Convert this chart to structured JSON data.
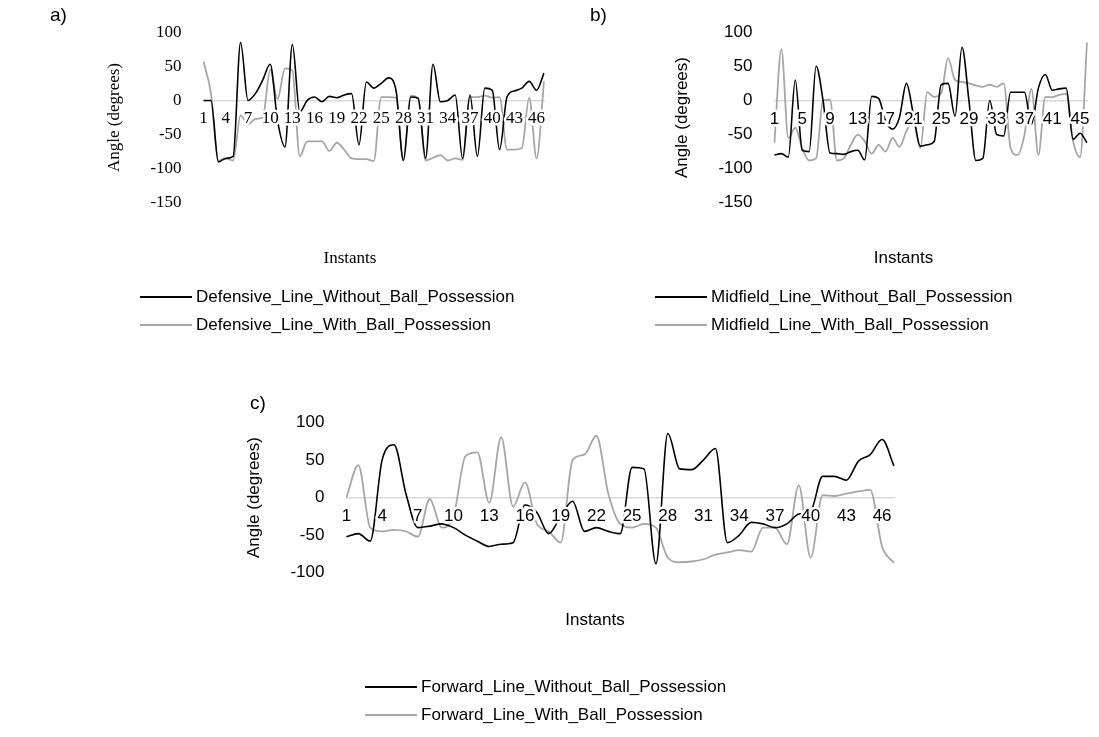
{
  "chart_data": [
    {
      "type": "line",
      "title": "a)",
      "xlabel": "Instants",
      "ylabel": "Angle (degrees)",
      "ylim": [
        -150,
        100
      ],
      "yticks": [
        -150,
        -100,
        -50,
        0,
        50,
        100
      ],
      "grid": false,
      "legend": "bottom",
      "marker": "none",
      "line_style": "solid",
      "categories": [
        "1",
        null,
        null,
        "4",
        null,
        null,
        "7",
        null,
        null,
        "10",
        null,
        null,
        "13",
        null,
        null,
        "16",
        null,
        null,
        "19",
        null,
        null,
        "22",
        null,
        null,
        "25",
        null,
        null,
        "28",
        null,
        null,
        "31",
        null,
        null,
        "34",
        null,
        null,
        "37",
        null,
        null,
        "40",
        null,
        null,
        "43",
        null,
        null,
        "46",
        null
      ],
      "series": [
        {
          "name": "Defensive_Line_Without_Ball_Possession",
          "color": "#000000",
          "values": [
            0,
            0,
            -90,
            -85,
            -82,
            85,
            0,
            10,
            30,
            53,
            -30,
            -68,
            82,
            -17,
            0,
            5,
            -2,
            6,
            4,
            8,
            10,
            -65,
            27,
            18,
            25,
            33,
            15,
            -88,
            5,
            3,
            -85,
            53,
            -2,
            0,
            8,
            -85,
            8,
            -82,
            18,
            15,
            -72,
            5,
            14,
            18,
            28,
            15,
            40
          ]
        },
        {
          "name": "Defensive_Line_With_Ball_Possession",
          "color": "#a6a6a6",
          "values": [
            57,
            10,
            -88,
            -85,
            -88,
            -22,
            -35,
            -27,
            -25,
            45,
            2,
            47,
            44,
            -82,
            -60,
            -60,
            -60,
            -74,
            -62,
            -72,
            -85,
            -86,
            -86,
            -89,
            5,
            5,
            4,
            -87,
            7,
            3,
            -88,
            -84,
            -80,
            -88,
            -85,
            -87,
            5,
            5,
            7,
            4,
            5,
            -72,
            -72,
            -70,
            4,
            -85,
            28
          ]
        }
      ]
    },
    {
      "type": "line",
      "title": "b)",
      "xlabel": "Instants",
      "ylabel": "Angle (degrees)",
      "ylim": [
        -150,
        100
      ],
      "yticks": [
        -150,
        -100,
        -50,
        0,
        50,
        100
      ],
      "grid": false,
      "legend": "bottom",
      "marker": "none",
      "line_style": "solid",
      "categories": [
        "1",
        null,
        null,
        null,
        "5",
        null,
        null,
        null,
        "9",
        null,
        null,
        null,
        "13",
        null,
        null,
        null,
        "17",
        null,
        null,
        null,
        "21",
        null,
        null,
        null,
        "25",
        null,
        null,
        null,
        "29",
        null,
        null,
        null,
        "33",
        null,
        null,
        null,
        "37",
        null,
        null,
        null,
        "41",
        null,
        null,
        null,
        "45",
        null
      ],
      "series": [
        {
          "name": "Midfield_Line_Without_Ball_Possession",
          "color": "#000000",
          "values": [
            -80,
            -78,
            -83,
            30,
            -73,
            -75,
            50,
            0,
            -77,
            -78,
            -79,
            -75,
            -73,
            -87,
            6,
            3,
            -30,
            -42,
            -25,
            25,
            -20,
            -67,
            -65,
            -60,
            23,
            25,
            -23,
            78,
            0,
            -88,
            -85,
            0,
            -50,
            -52,
            12,
            12,
            12,
            -35,
            18,
            38,
            15,
            17,
            18,
            -57,
            -48,
            -62
          ]
        },
        {
          "name": "Midfield_Line_With_Ball_Possession",
          "color": "#a6a6a6",
          "values": [
            -62,
            75,
            -55,
            -40,
            -70,
            -88,
            -85,
            0,
            1,
            -88,
            -85,
            -65,
            -50,
            -60,
            -78,
            -65,
            -75,
            -55,
            -68,
            -45,
            -30,
            -70,
            12,
            5,
            10,
            62,
            30,
            27,
            25,
            22,
            20,
            23,
            20,
            25,
            -70,
            -80,
            -50,
            17,
            -80,
            5,
            5,
            8,
            10,
            -60,
            -83,
            85
          ]
        }
      ]
    },
    {
      "type": "line",
      "title": "c)",
      "xlabel": "Instants",
      "ylabel": "Angle (degrees)",
      "ylim": [
        -100,
        100
      ],
      "yticks": [
        -100,
        -50,
        0,
        50,
        100
      ],
      "grid": false,
      "legend": "bottom",
      "marker": "none",
      "line_style": "solid",
      "categories": [
        "1",
        null,
        null,
        "4",
        null,
        null,
        "7",
        null,
        null,
        "10",
        null,
        null,
        "13",
        null,
        null,
        "16",
        null,
        null,
        "19",
        null,
        null,
        "22",
        null,
        null,
        "25",
        null,
        null,
        "28",
        null,
        null,
        "31",
        null,
        null,
        "34",
        null,
        null,
        "37",
        null,
        null,
        "40",
        null,
        null,
        "43",
        null,
        null,
        "46",
        null
      ],
      "series": [
        {
          "name": "Forward_Line_Without_Ball_Possession",
          "color": "#000000",
          "values": [
            -52,
            -48,
            -58,
            50,
            70,
            5,
            -40,
            -38,
            -35,
            -40,
            -50,
            -58,
            -65,
            -62,
            -60,
            -10,
            -20,
            -48,
            -25,
            -5,
            -45,
            -40,
            -45,
            -48,
            40,
            38,
            -88,
            85,
            38,
            37,
            50,
            65,
            -60,
            -50,
            -33,
            -35,
            -40,
            -35,
            -22,
            -18,
            28,
            28,
            23,
            48,
            57,
            77,
            42
          ]
        },
        {
          "name": "Forward_Line_With_Ball_Possession",
          "color": "#a6a6a6",
          "values": [
            0,
            43,
            -40,
            -45,
            -43,
            -45,
            -52,
            -2,
            -40,
            -25,
            55,
            60,
            -7,
            80,
            -12,
            20,
            -35,
            -45,
            -60,
            50,
            57,
            82,
            5,
            -35,
            -40,
            -35,
            -40,
            -80,
            -86,
            -85,
            -82,
            -76,
            -73,
            -70,
            -72,
            -40,
            -40,
            -62,
            16,
            -80,
            3,
            2,
            5,
            8,
            10,
            -65,
            -87
          ]
        }
      ]
    }
  ]
}
